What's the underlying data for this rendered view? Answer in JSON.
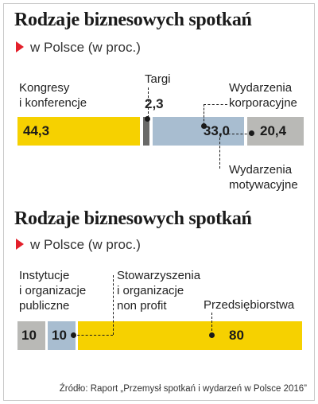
{
  "colors": {
    "yellow": "#f6d100",
    "blue": "#a8bdd0",
    "gray": "#b9b9b6",
    "dark": "#6a6a68",
    "marker": "#e3202b"
  },
  "chart_data": [
    {
      "type": "bar",
      "title": "Rodzaje biznesowych spotkań",
      "subtitle": "w Polsce (w proc.)",
      "categories": [
        "Kongresy i konferencje",
        "Targi",
        "Wydarzenia korporacyjne",
        "Wydarzenia motywacyjne"
      ],
      "labels": {
        "kongresy_line1": "Kongresy",
        "kongresy_line2": "i konferencje",
        "targi": "Targi",
        "korporacyjne_line1": "Wydarzenia",
        "korporacyjne_line2": "korporacyjne",
        "motywacyjne_line1": "Wydarzenia",
        "motywacyjne_line2": "motywacyjne"
      },
      "values": [
        44.3,
        2.3,
        33.0,
        20.4
      ],
      "display_values": [
        "44,3",
        "2,3",
        "33,0",
        "20,4"
      ]
    },
    {
      "type": "bar",
      "title": "Rodzaje biznesowych spotkań",
      "subtitle": "w Polsce (w proc.)",
      "categories": [
        "Instytucje i organizacje publiczne",
        "Stowarzyszenia i organizacje non profit",
        "Przedsiębiorstwa"
      ],
      "labels": {
        "instytucje_line1": "Instytucje",
        "instytucje_line2": "i organizacje",
        "instytucje_line3": "publiczne",
        "stow_line1": "Stowarzyszenia",
        "stow_line2": "i organizacje",
        "stow_line3": "non profit",
        "przed": "Przedsiębiorstwa"
      },
      "values": [
        10,
        10,
        80
      ],
      "display_values": [
        "10",
        "10",
        "80"
      ]
    }
  ],
  "source": "Źródło: Raport „Przemysł spotkań i wydarzeń w Polsce 2016”"
}
